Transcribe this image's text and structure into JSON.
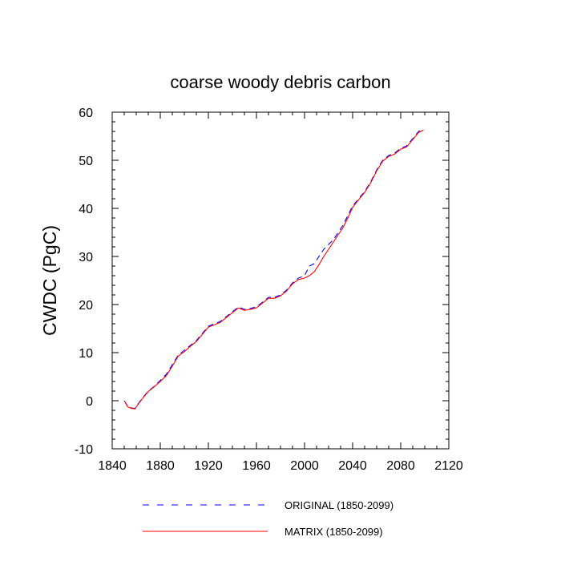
{
  "chart_data": {
    "type": "line",
    "title": "coarse woody debris carbon",
    "xlabel": "",
    "ylabel": "CWDC  (PgC)",
    "xlim": [
      1840,
      2120
    ],
    "ylim": [
      -10,
      60
    ],
    "xticks": [
      1840,
      1880,
      1920,
      1960,
      2000,
      2040,
      2080,
      2120
    ],
    "yticks": [
      -10,
      0,
      10,
      20,
      30,
      40,
      50,
      60
    ],
    "x_minor_step": 10,
    "y_minor_step": 2,
    "grid": false,
    "legend_position": "bottom",
    "series": [
      {
        "name": "ORIGINAL (1850-2099)",
        "color": "#0000ff",
        "style": "dashed",
        "x": [
          1850,
          1853,
          1856,
          1859,
          1862,
          1866,
          1870,
          1875,
          1880,
          1885,
          1890,
          1895,
          1900,
          1905,
          1910,
          1915,
          1920,
          1925,
          1930,
          1935,
          1940,
          1945,
          1950,
          1955,
          1960,
          1965,
          1970,
          1975,
          1980,
          1985,
          1990,
          1995,
          2000,
          2004,
          2008,
          2012,
          2016,
          2020,
          2024,
          2028,
          2032,
          2036,
          2040,
          2045,
          2050,
          2055,
          2060,
          2065,
          2070,
          2075,
          2080,
          2085,
          2090,
          2095,
          2099
        ],
        "values": [
          0,
          -1.2,
          -1.5,
          -1.6,
          -0.5,
          0.8,
          2.0,
          3.0,
          4.2,
          5.5,
          7.5,
          9.5,
          10.5,
          11.5,
          12.5,
          14.0,
          15.5,
          16.0,
          16.5,
          17.5,
          18.5,
          19.5,
          19.0,
          19.2,
          19.5,
          20.5,
          21.5,
          21.5,
          22.0,
          23.0,
          24.5,
          25.5,
          26.0,
          28.0,
          28.5,
          30.0,
          31.5,
          32.5,
          33.5,
          35.0,
          36.5,
          38.5,
          40.5,
          42.0,
          43.5,
          45.5,
          48.0,
          50.0,
          51.0,
          51.5,
          52.5,
          53.0,
          54.5,
          56.0,
          56.5
        ]
      },
      {
        "name": "MATRIX (1850-2099)",
        "color": "#ff0000",
        "style": "solid",
        "x": [
          1850,
          1853,
          1856,
          1859,
          1862,
          1866,
          1870,
          1875,
          1880,
          1885,
          1890,
          1895,
          1900,
          1905,
          1910,
          1915,
          1920,
          1925,
          1930,
          1935,
          1940,
          1945,
          1950,
          1955,
          1960,
          1965,
          1970,
          1975,
          1980,
          1985,
          1990,
          1995,
          2000,
          2004,
          2008,
          2012,
          2016,
          2020,
          2024,
          2028,
          2032,
          2036,
          2040,
          2045,
          2050,
          2055,
          2060,
          2065,
          2070,
          2075,
          2080,
          2085,
          2090,
          2095,
          2099
        ],
        "values": [
          0,
          -1.3,
          -1.6,
          -1.7,
          -0.6,
          0.7,
          1.9,
          2.9,
          4.0,
          5.2,
          7.2,
          9.3,
          10.2,
          11.3,
          12.3,
          13.8,
          15.3,
          15.8,
          16.3,
          17.3,
          18.3,
          19.3,
          18.8,
          19.0,
          19.3,
          20.3,
          21.3,
          21.3,
          21.8,
          22.8,
          24.3,
          25.2,
          25.5,
          26.0,
          26.8,
          28.3,
          30.0,
          31.5,
          33.0,
          34.5,
          36.0,
          38.0,
          40.2,
          41.8,
          43.3,
          45.3,
          47.8,
          49.8,
          50.8,
          51.3,
          52.3,
          52.8,
          54.3,
          55.8,
          56.3
        ]
      }
    ]
  }
}
